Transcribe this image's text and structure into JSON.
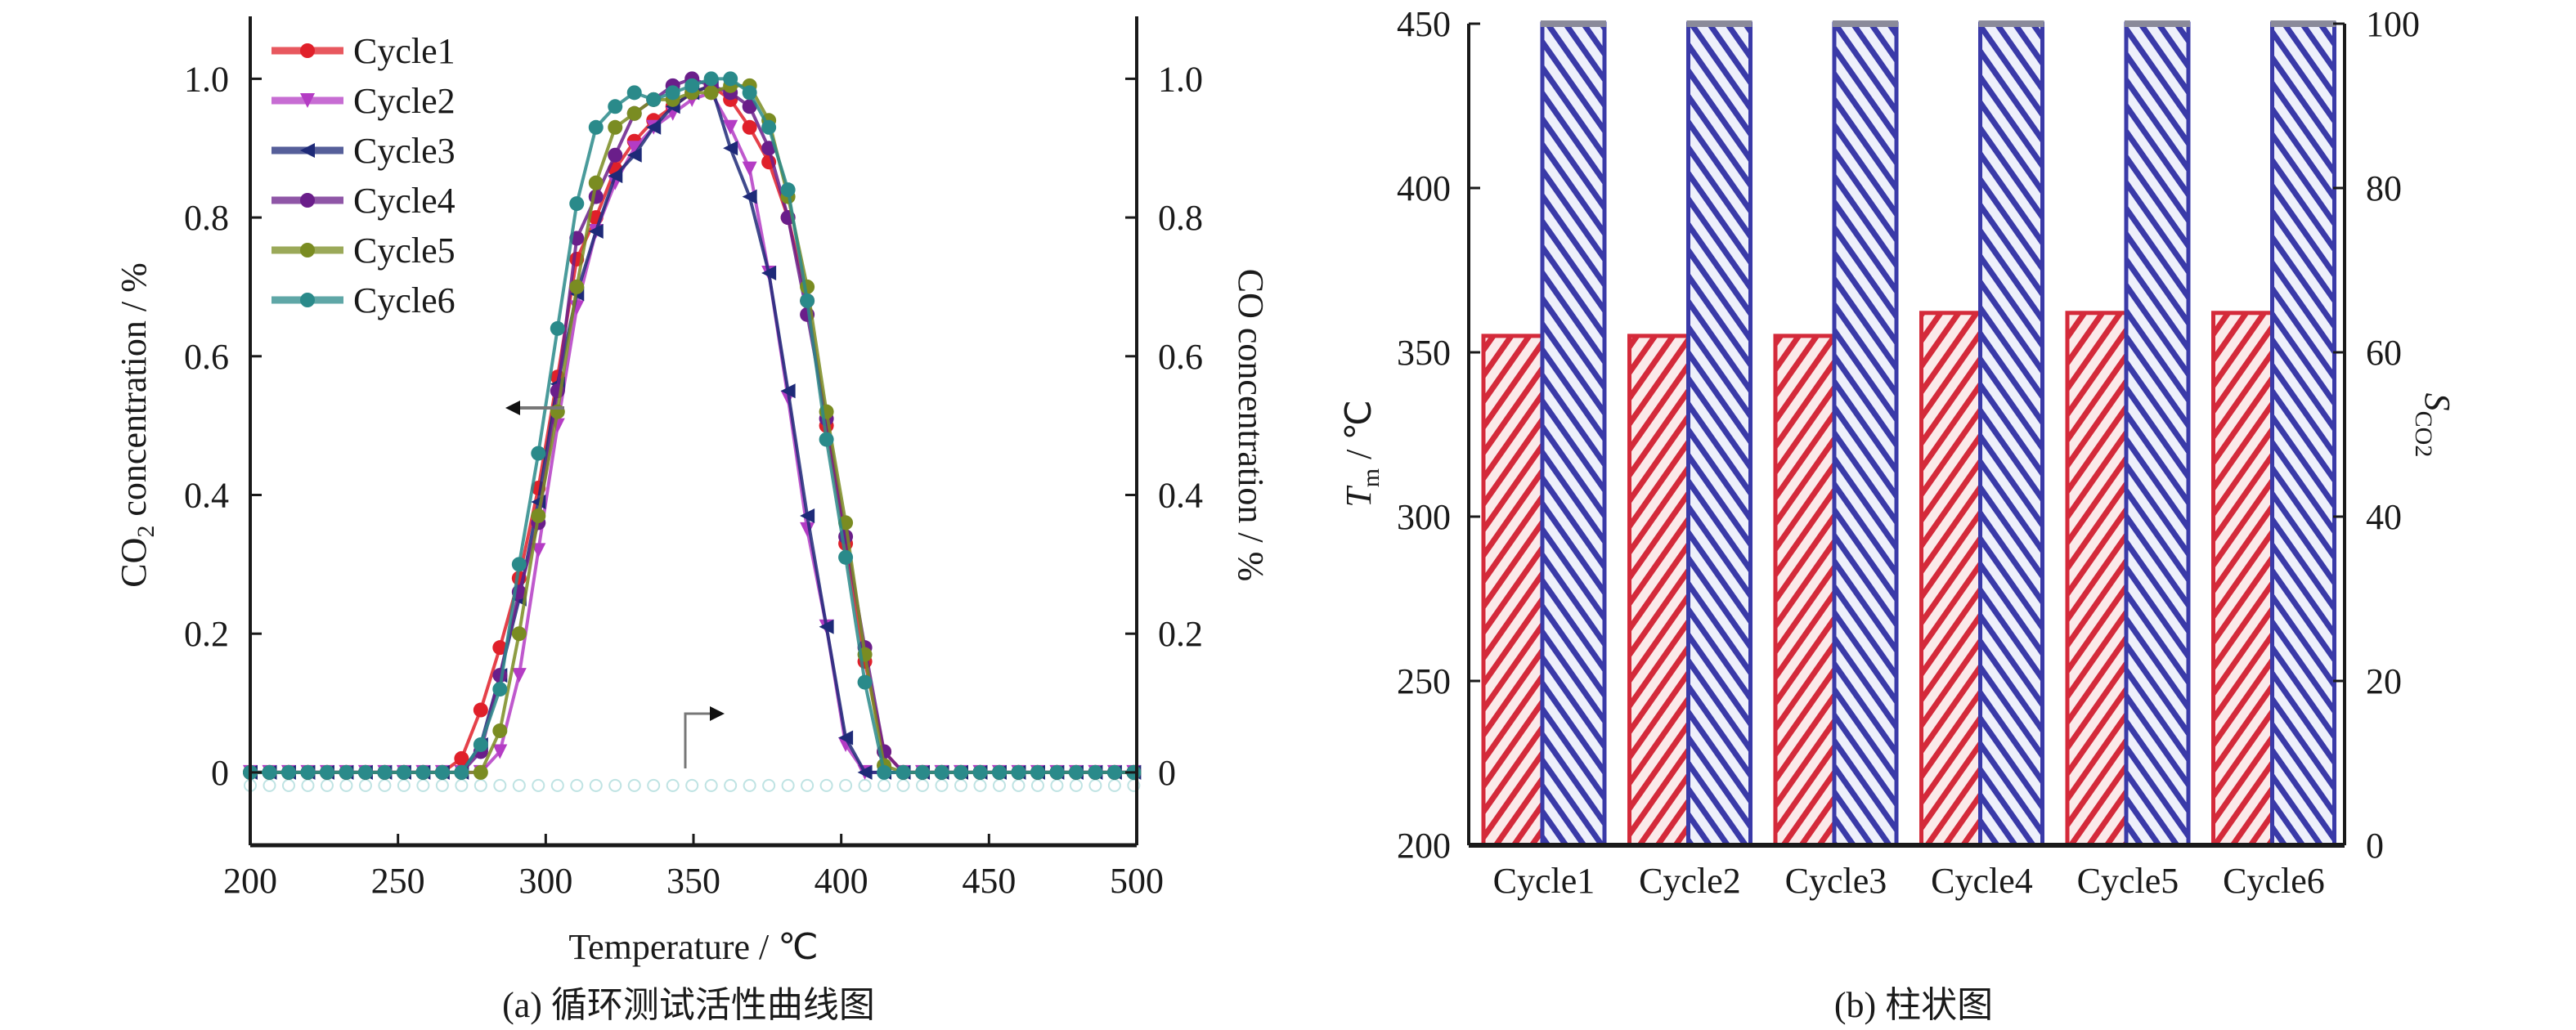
{
  "chart_data": [
    {
      "type": "line",
      "panel": "a",
      "caption": "(a) 循环测试活性曲线图",
      "xlabel": "Temperature / ℃",
      "ylabel_left": {
        "main": "CO",
        "sub": "2",
        "rest": " concentration / %"
      },
      "ylabel_right": "CO concentration / %",
      "xlim": [
        200,
        500
      ],
      "ylim": [
        -0.105,
        1.09
      ],
      "xticks": [
        200,
        250,
        300,
        350,
        400,
        450,
        500
      ],
      "xtick_labels": [
        "200",
        "250",
        "300",
        "350",
        "400",
        "450",
        "500"
      ],
      "yticks": [
        0,
        0.2,
        0.4,
        0.6,
        0.8,
        1.0
      ],
      "ytick_labels": [
        "0",
        "0.2",
        "0.4",
        "0.6",
        "0.8",
        "1.0"
      ],
      "grid": false,
      "legend_position": "top-left",
      "annotations": [
        {
          "type": "arrow",
          "direction": "left",
          "points_to_axis": "left",
          "at_x": 290,
          "at_y": 0.525
        },
        {
          "type": "arrow",
          "direction": "right",
          "points_to_axis": "right",
          "at_x": 350,
          "at_y": 0.085
        }
      ],
      "x_step": 6.5,
      "x_start": 200,
      "series": [
        {
          "name": "Cycle1",
          "color": "#e0202a",
          "marker": "circle",
          "values": [
            0,
            0,
            0,
            0,
            0,
            0,
            0,
            0,
            0,
            0,
            0,
            0.02,
            0.09,
            0.18,
            0.28,
            0.41,
            0.57,
            0.74,
            0.8,
            0.87,
            0.91,
            0.94,
            0.96,
            0.98,
            0.99,
            0.97,
            0.93,
            0.88,
            0.8,
            0.68,
            0.5,
            0.33,
            0.16,
            0.03,
            0,
            0,
            0,
            0,
            0,
            0,
            0,
            0,
            0,
            0,
            0,
            0,
            0
          ]
        },
        {
          "name": "Cycle2",
          "color": "#b43cc4",
          "marker": "triangle-down",
          "values": [
            0,
            0,
            0,
            0,
            0,
            0,
            0,
            0,
            0,
            0,
            0,
            0,
            0,
            0.03,
            0.14,
            0.32,
            0.5,
            0.67,
            0.78,
            0.85,
            0.9,
            0.93,
            0.95,
            0.97,
            0.98,
            0.93,
            0.87,
            0.72,
            0.54,
            0.35,
            0.21,
            0.04,
            0,
            0,
            0,
            0,
            0,
            0,
            0,
            0,
            0,
            0,
            0,
            0,
            0,
            0,
            0
          ]
        },
        {
          "name": "Cycle3",
          "color": "#1e2a78",
          "marker": "triangle-left",
          "values": [
            0,
            0,
            0,
            0,
            0,
            0,
            0,
            0,
            0,
            0,
            0,
            0,
            0.04,
            0.14,
            0.25,
            0.39,
            0.56,
            0.69,
            0.78,
            0.86,
            0.89,
            0.93,
            0.96,
            0.98,
            0.99,
            0.9,
            0.83,
            0.72,
            0.55,
            0.37,
            0.21,
            0.05,
            0,
            0,
            0,
            0,
            0,
            0,
            0,
            0,
            0,
            0,
            0,
            0,
            0,
            0,
            0
          ]
        },
        {
          "name": "Cycle4",
          "color": "#6a1e8a",
          "marker": "circle",
          "values": [
            0,
            0,
            0,
            0,
            0,
            0,
            0,
            0,
            0,
            0,
            0,
            0,
            0.03,
            0.14,
            0.26,
            0.36,
            0.55,
            0.77,
            0.83,
            0.89,
            0.95,
            0.97,
            0.99,
            1.0,
            0.99,
            0.98,
            0.96,
            0.9,
            0.8,
            0.66,
            0.51,
            0.34,
            0.18,
            0.03,
            0,
            0,
            0,
            0,
            0,
            0,
            0,
            0,
            0,
            0,
            0,
            0,
            0
          ]
        },
        {
          "name": "Cycle5",
          "color": "#7a8c22",
          "marker": "circle",
          "values": [
            0,
            0,
            0,
            0,
            0,
            0,
            0,
            0,
            0,
            0,
            0,
            0,
            0,
            0.06,
            0.2,
            0.37,
            0.52,
            0.7,
            0.85,
            0.93,
            0.95,
            0.97,
            0.97,
            0.98,
            0.98,
            0.99,
            0.99,
            0.94,
            0.83,
            0.7,
            0.52,
            0.36,
            0.17,
            0.01,
            0,
            0,
            0,
            0,
            0,
            0,
            0,
            0,
            0,
            0,
            0,
            0,
            0
          ]
        },
        {
          "name": "Cycle6",
          "color": "#2a8a8a",
          "marker": "circle",
          "values": [
            0,
            0,
            0,
            0,
            0,
            0,
            0,
            0,
            0,
            0,
            0,
            0,
            0.04,
            0.12,
            0.3,
            0.46,
            0.64,
            0.82,
            0.93,
            0.96,
            0.98,
            0.97,
            0.98,
            0.99,
            1.0,
            1.0,
            0.98,
            0.93,
            0.84,
            0.68,
            0.48,
            0.31,
            0.13,
            0,
            0,
            0,
            0,
            0,
            0,
            0,
            0,
            0,
            0,
            0,
            0,
            0,
            0
          ]
        }
      ]
    },
    {
      "type": "bar",
      "panel": "b",
      "caption": "(b) 柱状图",
      "categories": [
        "Cycle1",
        "Cycle2",
        "Cycle3",
        "Cycle4",
        "Cycle5",
        "Cycle6"
      ],
      "ylabel_left": {
        "main": "T",
        "sub": "m",
        "rest": " / ℃"
      },
      "ylabel_right": {
        "main": "S",
        "sub": "CO2"
      },
      "ylim_left": [
        200,
        450
      ],
      "ylim_right": [
        0,
        100
      ],
      "yticks_left": [
        200,
        250,
        300,
        350,
        400,
        450
      ],
      "ytick_labels_left": [
        "200",
        "250",
        "300",
        "350",
        "400",
        "450"
      ],
      "yticks_right": [
        0,
        20,
        40,
        60,
        80,
        100
      ],
      "ytick_labels_right": [
        "0",
        "20",
        "40",
        "60",
        "80",
        "100"
      ],
      "grid": false,
      "series": [
        {
          "name": "Tm",
          "axis": "left",
          "color": "#d42a3a",
          "pattern": "hatch-forward",
          "values": [
            355,
            355,
            355,
            362,
            362,
            362
          ]
        },
        {
          "name": "SCO2",
          "axis": "right",
          "color": "#3a3aa8",
          "pattern": "hatch-backward",
          "values": [
            100,
            100,
            100,
            100,
            100,
            100
          ]
        }
      ]
    }
  ]
}
